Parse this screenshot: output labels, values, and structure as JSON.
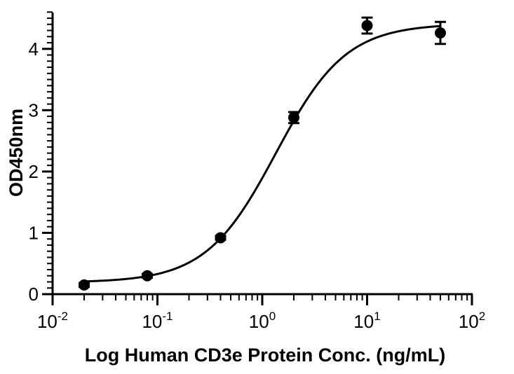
{
  "chart_data": {
    "type": "scatter",
    "xlabel": "Log Human CD3e Protein Conc. (ng/mL)",
    "ylabel": "OD450nm",
    "x_scale": "log",
    "xlim": [
      0.01,
      100
    ],
    "ylim": [
      0,
      4.5
    ],
    "x_ticks": [
      {
        "value": 0.01,
        "base": "10",
        "exp": "-2"
      },
      {
        "value": 0.1,
        "base": "10",
        "exp": "-1"
      },
      {
        "value": 1,
        "base": "10",
        "exp": "0"
      },
      {
        "value": 10,
        "base": "10",
        "exp": "1"
      },
      {
        "value": 100,
        "base": "10",
        "exp": "2"
      }
    ],
    "y_ticks": [
      0,
      1,
      2,
      3,
      4
    ],
    "grid": false,
    "series": [
      {
        "x": [
          0.02,
          0.08,
          0.4,
          2,
          10,
          50
        ],
        "y": [
          0.15,
          0.3,
          0.92,
          2.88,
          4.38,
          4.26
        ],
        "error": [
          0.03,
          0.03,
          0.03,
          0.09,
          0.13,
          0.18
        ],
        "color": "#000000"
      }
    ],
    "fit_curve": {
      "model": "4PL",
      "bottom": 0.19,
      "top": 4.41,
      "ec50": 1.35,
      "hill": 1.3,
      "color": "#000000"
    }
  }
}
